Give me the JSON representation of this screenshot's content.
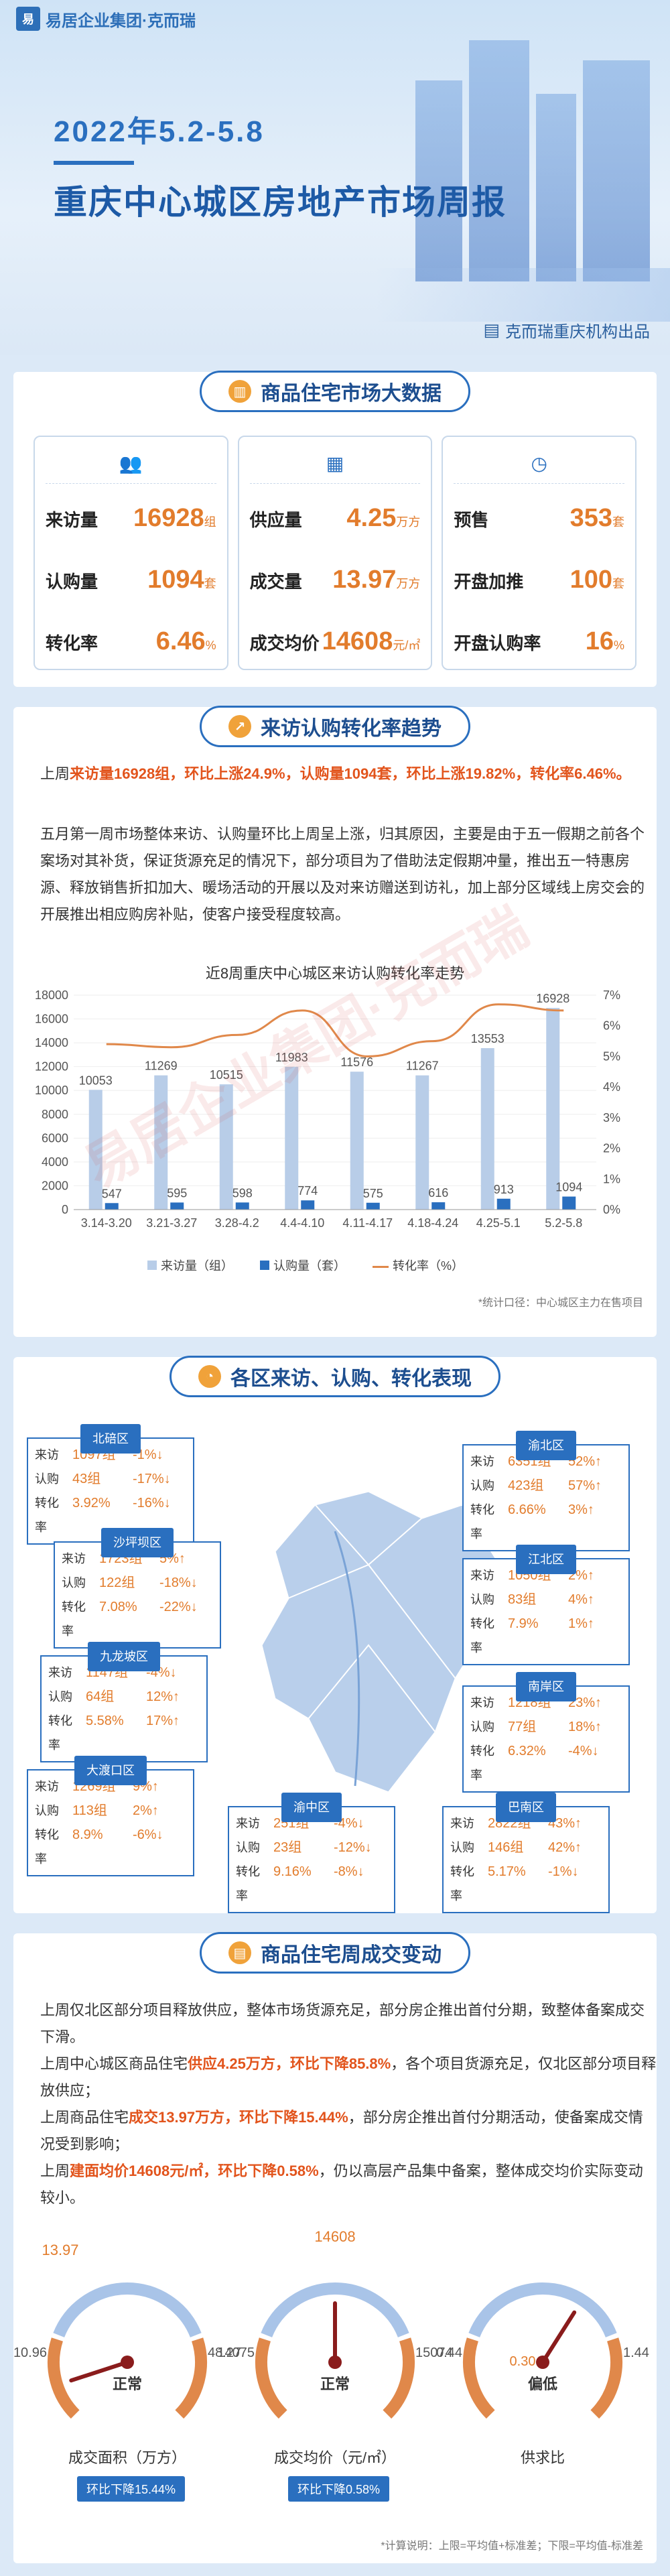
{
  "header": {
    "logo_mark": "易",
    "logo_text": "易居企业集团·克而瑞",
    "date": "2022年5.2-5.8",
    "title": "重庆中心城区房地产市场周报",
    "source": "克而瑞重庆机构出品"
  },
  "sec1": {
    "title": "商品住宅市场大数据",
    "cards": [
      {
        "rows": [
          {
            "label": "来访量",
            "value": "16928",
            "unit": "组"
          },
          {
            "label": "认购量",
            "value": "1094",
            "unit": "套"
          },
          {
            "label": "转化率",
            "value": "6.46",
            "unit": "%"
          }
        ]
      },
      {
        "rows": [
          {
            "label": "供应量",
            "value": "4.25",
            "unit": "万方"
          },
          {
            "label": "成交量",
            "value": "13.97",
            "unit": "万方"
          },
          {
            "label": "成交均价",
            "value": "14608",
            "unit": "元/㎡"
          }
        ]
      },
      {
        "rows": [
          {
            "label": "预售",
            "value": "353",
            "unit": "套"
          },
          {
            "label": "开盘加推",
            "value": "100",
            "unit": "套"
          },
          {
            "label": "开盘认购率",
            "value": "16",
            "unit": "%"
          }
        ]
      }
    ]
  },
  "sec2": {
    "title": "来访认购转化率趋势",
    "p1_a": "上周",
    "p1_b": "来访量16928组，环比上涨24.9%，认购量1094套，环比上涨19.82%，转化率6.46%。",
    "p2": "五月第一周市场整体来访、认购量环比上周呈上涨，归其原因，主要是由于五一假期之前各个案场对其补货，保证货源充足的情况下，部分项目为了借助法定假期冲量，推出五一特惠房源、释放销售折扣加大、暖场活动的开展以及对来访赠送到访礼，加上部分区域线上房交会的开展推出相应购房补贴，使客户接受程度较高。",
    "chart_title": "近8周重庆中心城区来访认购转化率走势",
    "legend": [
      "来访量（组）",
      "认购量（套）",
      "转化率（%）"
    ],
    "note": "*统计口径：中心城区主力在售项目"
  },
  "chart_data": {
    "type": "bar",
    "title": "近8周重庆中心城区来访认购转化率走势",
    "categories": [
      "3.14-3.20",
      "3.21-3.27",
      "3.28-4.2",
      "4.4-4.10",
      "4.11-4.17",
      "4.18-4.24",
      "4.25-5.1",
      "5.2-5.8"
    ],
    "series": [
      {
        "name": "来访量（组）",
        "values": [
          10053,
          11269,
          10515,
          11983,
          11576,
          11267,
          13553,
          16928
        ],
        "color": "#b8cde8"
      },
      {
        "name": "认购量（套）",
        "values": [
          547,
          595,
          598,
          774,
          575,
          616,
          913,
          1094
        ],
        "color": "#2a6fbf"
      },
      {
        "name": "转化率（%）",
        "values": [
          5.4,
          5.3,
          5.7,
          6.5,
          5.0,
          5.5,
          6.7,
          6.5
        ],
        "color": "#e0884a",
        "axis": "right"
      }
    ],
    "ylim": [
      0,
      18000
    ],
    "y2lim": [
      0,
      7
    ],
    "yticks": [
      "0",
      "2000",
      "4000",
      "6000",
      "8000",
      "10000",
      "12000",
      "14000",
      "16000",
      "18000"
    ],
    "y2ticks": [
      "0%",
      "1%",
      "2%",
      "3%",
      "4%",
      "5%",
      "6%",
      "7%"
    ]
  },
  "sec3": {
    "title": "各区来访、认购、转化表现",
    "labels": {
      "visit": "来访",
      "sub": "认购",
      "conv": "转化率"
    },
    "districts": [
      {
        "name": "北碚区",
        "visit": "1097组",
        "visit_c": "-1%↓",
        "sub": "43组",
        "sub_c": "-17%↓",
        "conv": "3.92%",
        "conv_c": "-16%↓"
      },
      {
        "name": "渝北区",
        "visit": "6351组",
        "visit_c": "52%↑",
        "sub": "423组",
        "sub_c": "57%↑",
        "conv": "6.66%",
        "conv_c": "3%↑"
      },
      {
        "name": "沙坪坝区",
        "visit": "1723组",
        "visit_c": "5%↑",
        "sub": "122组",
        "sub_c": "-18%↓",
        "conv": "7.08%",
        "conv_c": "-22%↓"
      },
      {
        "name": "江北区",
        "visit": "1050组",
        "visit_c": "2%↑",
        "sub": "83组",
        "sub_c": "4%↑",
        "conv": "7.9%",
        "conv_c": "1%↑"
      },
      {
        "name": "九龙坡区",
        "visit": "1147组",
        "visit_c": "-4%↓",
        "sub": "64组",
        "sub_c": "12%↑",
        "conv": "5.58%",
        "conv_c": "17%↑"
      },
      {
        "name": "南岸区",
        "visit": "1218组",
        "visit_c": "23%↑",
        "sub": "77组",
        "sub_c": "18%↑",
        "conv": "6.32%",
        "conv_c": "-4%↓"
      },
      {
        "name": "大渡口区",
        "visit": "1269组",
        "visit_c": "9%↑",
        "sub": "113组",
        "sub_c": "2%↑",
        "conv": "8.9%",
        "conv_c": "-6%↓"
      },
      {
        "name": "渝中区",
        "visit": "251组",
        "visit_c": "-4%↓",
        "sub": "23组",
        "sub_c": "-12%↓",
        "conv": "9.16%",
        "conv_c": "-8%↓"
      },
      {
        "name": "巴南区",
        "visit": "2822组",
        "visit_c": "43%↑",
        "sub": "146组",
        "sub_c": "42%↑",
        "conv": "5.17%",
        "conv_c": "-1%↓"
      }
    ]
  },
  "sec4": {
    "title": "商品住宅周成交变动",
    "p1": "上周仅北区部分项目释放供应，整体市场货源充足，部分房企推出首付分期，致整体备案成交下滑。",
    "p2_a": "上周中心城区商品住宅",
    "p2_b": "供应4.25万方，环比下降85.8%",
    "p2_c": "，各个项目货源充足，仅北区部分项目释放供应；",
    "p3_a": "上周商品住宅",
    "p3_b": "成交13.97万方，环比下降15.44%",
    "p3_c": "，部分房企推出首付分期活动，使备案成交情况受到影响；",
    "p4_a": "上周",
    "p4_b": "建面均价14608元/㎡，环比下降0.58%",
    "p4_c": "，仍以高层产品集中备案，整体成交均价实际变动较小。",
    "gauges": [
      {
        "top_value": "13.97",
        "left": "10.96",
        "right": "48.27",
        "status": "正常",
        "label": "成交面积（万方）",
        "note": "环比下降15.44%",
        "level": 0.1
      },
      {
        "top_value": "14608",
        "left": "14075",
        "right": "15074",
        "status": "正常",
        "label": "成交均价（元/㎡）",
        "note": "环比下降0.58%",
        "level": 0.5
      },
      {
        "top_value": "",
        "left": "0.44",
        "right": "1.44",
        "inner": "0.30",
        "status": "偏低",
        "label": "供求比",
        "note": "",
        "level": 0.62
      }
    ],
    "footnote": "*计算说明：上限=平均值+标准差；下限=平均值-标准差"
  },
  "watermark": "易居企业集团·克而瑞"
}
